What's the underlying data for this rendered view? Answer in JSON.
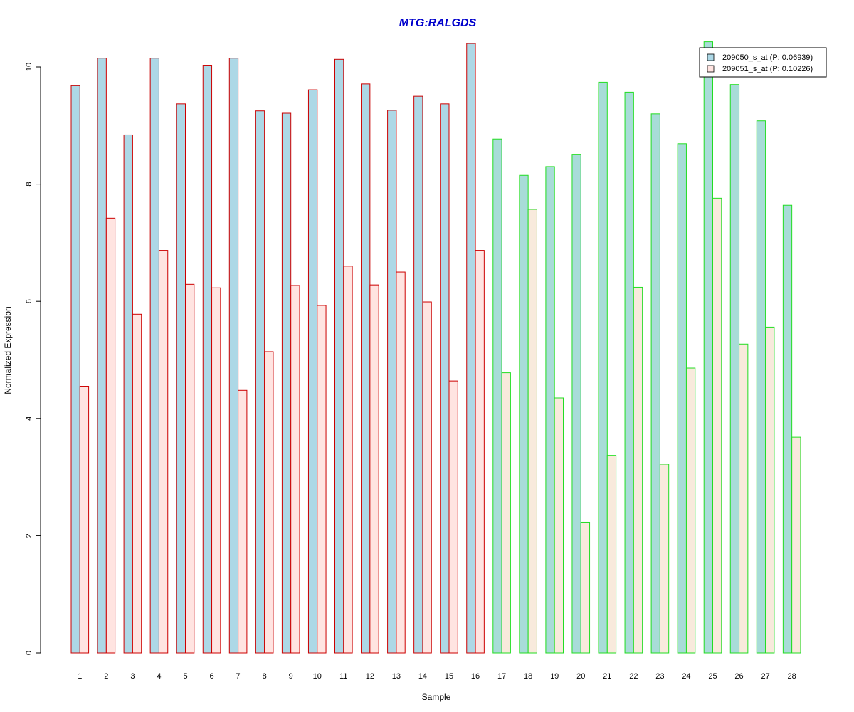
{
  "chart_data": {
    "type": "bar",
    "title": "MTG:RALGDS",
    "xlabel": "Sample",
    "ylabel": "Normalized Expression",
    "ylim": [
      0,
      10.5
    ],
    "yticks": [
      0,
      2,
      4,
      6,
      8,
      10
    ],
    "categories": [
      "1",
      "2",
      "3",
      "4",
      "5",
      "6",
      "7",
      "8",
      "9",
      "10",
      "11",
      "12",
      "13",
      "14",
      "15",
      "16",
      "17",
      "18",
      "19",
      "20",
      "21",
      "22",
      "23",
      "24",
      "25",
      "26",
      "27",
      "28"
    ],
    "groups": [
      {
        "from": 1,
        "to": 16,
        "border_color": "#cc0000"
      },
      {
        "from": 17,
        "to": 28,
        "border_color": "#22dd22"
      }
    ],
    "series": [
      {
        "name": "209050_s_at (P: 0.06939)",
        "fill_colors": [
          "#add8e6",
          "#a8dcd8"
        ],
        "values": [
          9.68,
          10.15,
          8.84,
          10.15,
          9.37,
          10.03,
          10.15,
          9.25,
          9.21,
          9.61,
          10.13,
          9.71,
          9.26,
          9.5,
          9.37,
          10.4,
          8.77,
          8.15,
          8.3,
          8.51,
          9.74,
          9.57,
          9.2,
          8.69,
          10.43,
          9.7,
          9.08,
          7.64
        ]
      },
      {
        "name": "209051_s_at (P: 0.10226)",
        "fill_colors": [
          "#ffe4e1",
          "#f8eadc"
        ],
        "values": [
          4.55,
          7.42,
          5.78,
          6.87,
          6.29,
          6.23,
          4.48,
          5.14,
          6.27,
          5.93,
          6.6,
          6.28,
          6.5,
          5.99,
          4.64,
          6.87,
          4.78,
          7.57,
          4.35,
          2.23,
          3.37,
          6.24,
          3.22,
          4.86,
          7.76,
          5.27,
          5.56,
          3.68
        ]
      }
    ],
    "legend_position": "top-right",
    "title_color": "#0000cc",
    "grid": false
  }
}
